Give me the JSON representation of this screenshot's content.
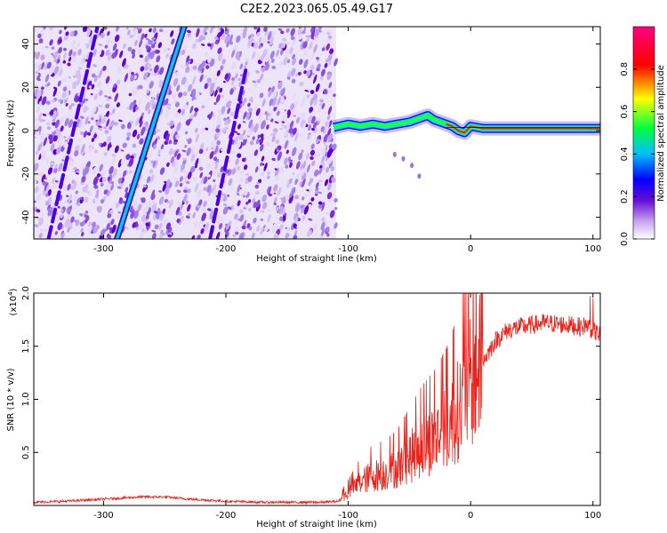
{
  "title": "C2E2.2023.065.05.49.G17",
  "chart_data": [
    {
      "type": "heatmap",
      "name": "spectrogram",
      "xlabel": "Height of straight line (km)",
      "ylabel": "Frequency (Hz)",
      "xlim": [
        -357,
        106
      ],
      "ylim": [
        -50,
        48
      ],
      "xticks": [
        -300,
        -200,
        -100,
        0,
        100
      ],
      "yticks": [
        -40,
        -20,
        0,
        20,
        40
      ],
      "colorbar": {
        "label": "Normalized spectral amplitude",
        "range": [
          0,
          1
        ],
        "ticks": [
          0.0,
          0.2,
          0.4,
          0.6,
          0.8
        ],
        "colors": [
          "#ffffff",
          "#6a0dd8",
          "#0000ff",
          "#00e5ff",
          "#00ff40",
          "#ffff00",
          "#ff0000",
          "#ff0080"
        ]
      },
      "features": {
        "noise_region_x": [
          -357,
          -110
        ],
        "tone_line": {
          "x": [
            -112,
            -100,
            -90,
            -80,
            -70,
            -60,
            -50,
            -40,
            -35,
            -30,
            -25,
            -20,
            -15,
            -10,
            -5,
            0,
            10,
            30,
            60,
            80,
            100,
            106
          ],
          "y": [
            1.5,
            3,
            2,
            3,
            2,
            3,
            4,
            6,
            7,
            5,
            4,
            3,
            2,
            0,
            -1,
            2,
            1,
            1,
            1,
            1,
            1,
            1
          ]
        },
        "diagonal_streaks": [
          {
            "x": [
              -289,
              -234
            ],
            "y": [
              -50,
              48
            ]
          },
          {
            "x": [
              -345,
              -305
            ],
            "y": [
              -50,
              48
            ]
          },
          {
            "x": [
              -213,
              -183
            ],
            "y": [
              -50,
              30
            ]
          }
        ],
        "secondary_dots": {
          "x": [
            -62,
            -55,
            -48,
            -42
          ],
          "y": [
            -11,
            -13,
            -16,
            -21
          ]
        }
      }
    },
    {
      "type": "line",
      "name": "snr",
      "xlabel": "Height of straight line (km)",
      "ylabel": "SNR (10 * v/v)",
      "scale_label": "(x10",
      "scale_exp": "4",
      "scale_close": ")",
      "xlim": [
        -357,
        106
      ],
      "ylim": [
        0,
        2.0
      ],
      "xticks": [
        -300,
        -200,
        -100,
        0,
        100
      ],
      "yticks": [
        0.5,
        1.0,
        1.5,
        2.0
      ],
      "series": [
        {
          "color": "#e8231c",
          "x": [
            -357,
            -330,
            -300,
            -270,
            -250,
            -230,
            -200,
            -170,
            -140,
            -120,
            -108,
            -100,
            -90,
            -80,
            -70,
            -60,
            -50,
            -40,
            -30,
            -20,
            -15,
            -10,
            -5,
            0,
            5,
            10,
            15,
            20,
            25,
            30,
            40,
            50,
            60,
            70,
            80,
            90,
            95,
            100,
            106
          ],
          "y": [
            0.03,
            0.04,
            0.06,
            0.08,
            0.08,
            0.06,
            0.04,
            0.03,
            0.03,
            0.03,
            0.04,
            0.12,
            0.22,
            0.28,
            0.3,
            0.35,
            0.45,
            0.55,
            0.62,
            0.72,
            0.8,
            0.9,
            1.0,
            1.15,
            1.25,
            1.35,
            1.45,
            1.55,
            1.6,
            1.65,
            1.68,
            1.7,
            1.72,
            1.71,
            1.7,
            1.68,
            1.7,
            1.65,
            1.6
          ]
        }
      ]
    }
  ]
}
